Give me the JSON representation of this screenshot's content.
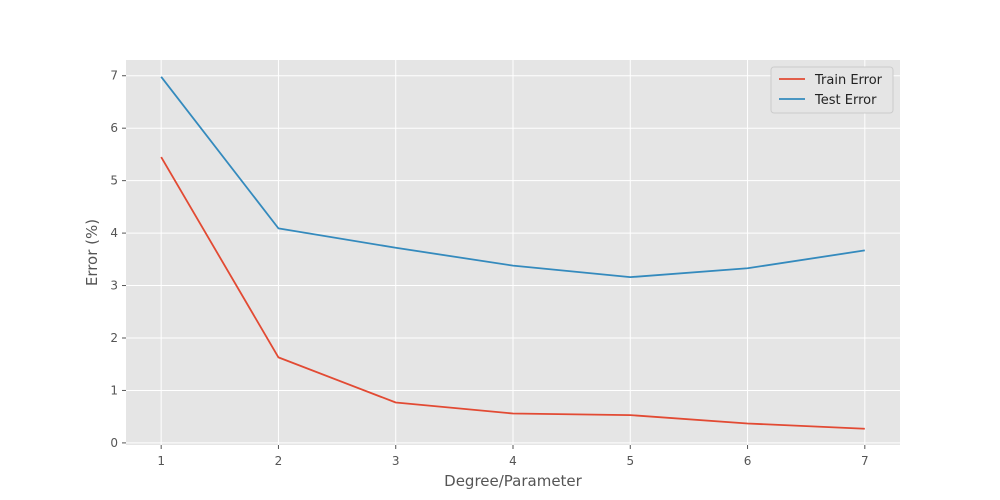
{
  "chart_data": {
    "type": "line",
    "title": "",
    "xlabel": "Degree/Parameter",
    "ylabel": "Error (%)",
    "x": [
      1,
      2,
      3,
      4,
      5,
      6,
      7
    ],
    "xticks": [
      "1",
      "2",
      "3",
      "4",
      "5",
      "6",
      "7"
    ],
    "yticks": [
      "0",
      "1",
      "2",
      "3",
      "4",
      "5",
      "6",
      "7"
    ],
    "xlim": [
      0.7,
      7.3
    ],
    "ylim": [
      -0.04,
      7.3
    ],
    "grid": true,
    "legend_position": "top-right",
    "series": [
      {
        "name": "Train Error",
        "color": "#E24A33",
        "values": [
          5.45,
          1.63,
          0.77,
          0.56,
          0.53,
          0.37,
          0.27
        ]
      },
      {
        "name": "Test Error",
        "color": "#348ABD",
        "values": [
          6.98,
          4.09,
          3.72,
          3.38,
          3.16,
          3.33,
          3.67
        ]
      }
    ],
    "style": {
      "plot_background": "#E5E5E5",
      "grid_color": "#FFFFFF"
    }
  }
}
